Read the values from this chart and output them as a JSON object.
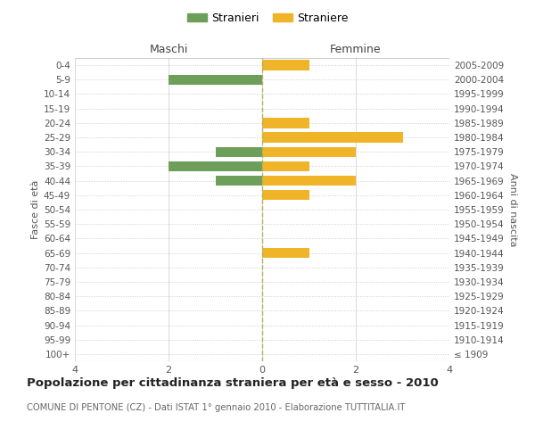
{
  "age_groups": [
    "100+",
    "95-99",
    "90-94",
    "85-89",
    "80-84",
    "75-79",
    "70-74",
    "65-69",
    "60-64",
    "55-59",
    "50-54",
    "45-49",
    "40-44",
    "35-39",
    "30-34",
    "25-29",
    "20-24",
    "15-19",
    "10-14",
    "5-9",
    "0-4"
  ],
  "birth_years": [
    "≤ 1909",
    "1910-1914",
    "1915-1919",
    "1920-1924",
    "1925-1929",
    "1930-1934",
    "1935-1939",
    "1940-1944",
    "1945-1949",
    "1950-1954",
    "1955-1959",
    "1960-1964",
    "1965-1969",
    "1970-1974",
    "1975-1979",
    "1980-1984",
    "1985-1989",
    "1990-1994",
    "1995-1999",
    "2000-2004",
    "2005-2009"
  ],
  "maschi": [
    0,
    0,
    0,
    0,
    0,
    0,
    0,
    0,
    0,
    0,
    0,
    0,
    1,
    2,
    1,
    0,
    0,
    0,
    0,
    2,
    0
  ],
  "femmine": [
    0,
    0,
    0,
    0,
    0,
    0,
    0,
    1,
    0,
    0,
    0,
    1,
    2,
    1,
    2,
    3,
    1,
    0,
    0,
    0,
    1
  ],
  "male_color": "#6d9e5a",
  "female_color": "#f0b429",
  "title_main": "Popolazione per cittadinanza straniera per età e sesso - 2010",
  "title_sub": "COMUNE DI PENTONE (CZ) - Dati ISTAT 1° gennaio 2010 - Elaborazione TUTTITALIA.IT",
  "legend_male": "Stranieri",
  "legend_female": "Straniere",
  "header_left": "Maschi",
  "header_right": "Femmine",
  "ylabel_left": "Fasce di età",
  "ylabel_right": "Anni di nascita",
  "xlim": 4,
  "background_color": "#ffffff",
  "grid_color": "#cccccc",
  "dashed_line_color": "#b0b060"
}
